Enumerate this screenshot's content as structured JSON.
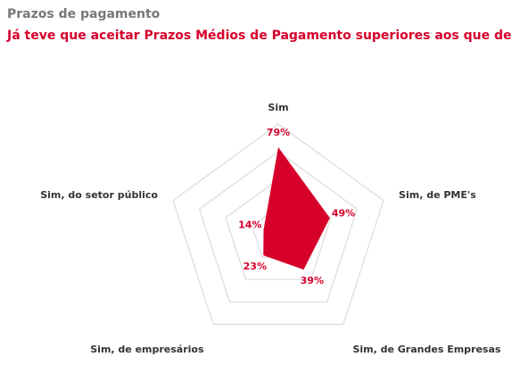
{
  "chart_data": {
    "type": "radar",
    "title": "Prazos de pagamento",
    "subtitle": "Já teve que aceitar Prazos Médios de Pagamento superiores aos que desejaria?",
    "categories": [
      "Sim",
      "Sim, de PME's",
      "Sim, de Grandes Empresas",
      "Sim, de empresários",
      "Sim, do setor público"
    ],
    "values": [
      79,
      49,
      39,
      23,
      14
    ],
    "value_labels": [
      "79%",
      "49%",
      "39%",
      "23%",
      "14%"
    ],
    "color": "#d6002a",
    "ylim": [
      0,
      100
    ],
    "yticks": [
      25,
      50,
      75,
      100
    ],
    "grid": true
  }
}
